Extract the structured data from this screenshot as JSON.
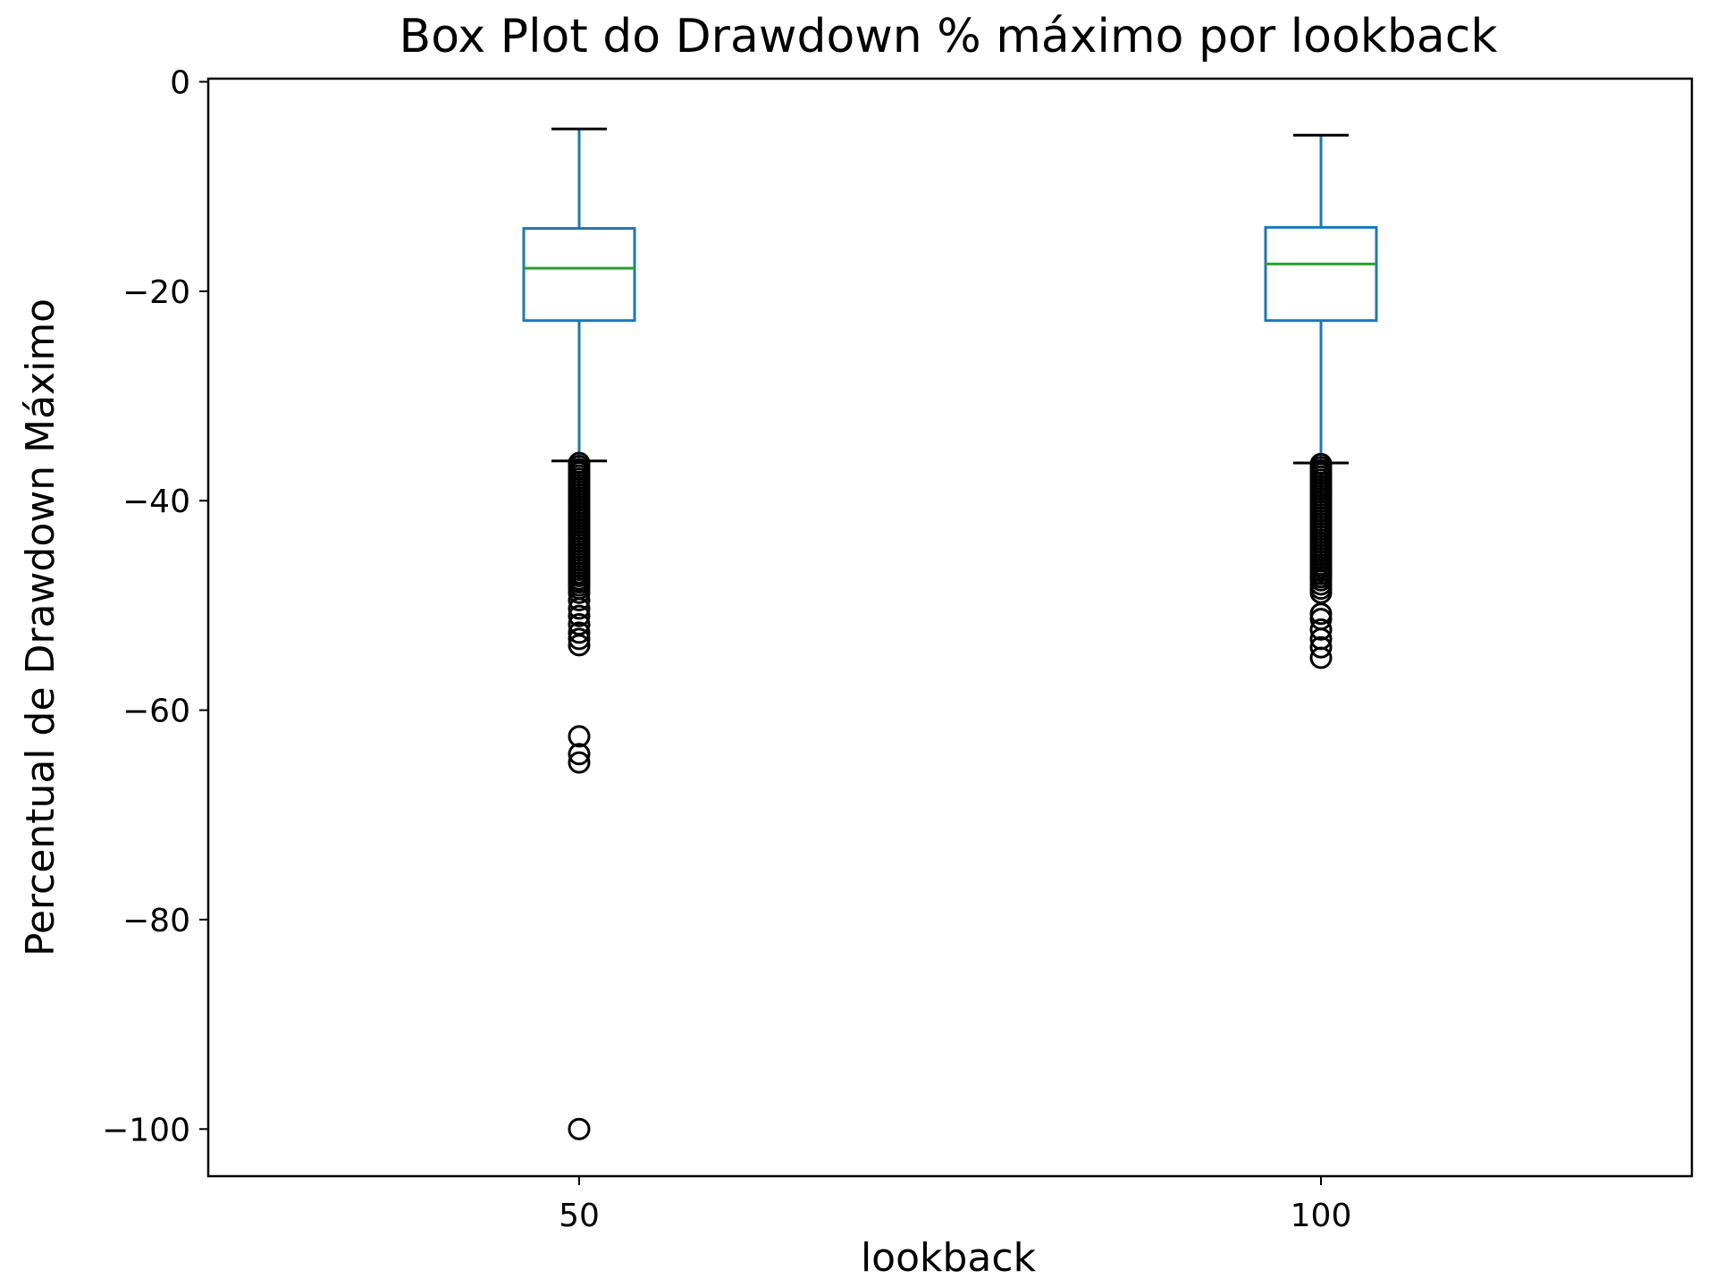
{
  "chart_data": {
    "type": "box",
    "title": "Box Plot do Drawdown % máximo por lookback",
    "xlabel": "lookback",
    "ylabel": "Percentual de Drawdown Máximo",
    "ylim": [
      -104.5,
      0.3
    ],
    "yticks": [
      0,
      -20,
      -40,
      -60,
      -80,
      -100
    ],
    "grid": false,
    "legend": "none",
    "colors": {
      "box": "#1f77b4",
      "median": "#2ca02c",
      "whisker_cap": "#000000",
      "outlier": "#000000",
      "frame": "#000000"
    },
    "categories": [
      "50",
      "100"
    ],
    "series": [
      {
        "category": "50",
        "whisker_high": -4.5,
        "q3": -14.0,
        "median": -17.8,
        "q1": -22.8,
        "whisker_low": -36.2,
        "outliers": [
          -36.4,
          -36.7,
          -37.0,
          -37.3,
          -37.6,
          -37.9,
          -38.2,
          -38.5,
          -38.8,
          -39.1,
          -39.4,
          -39.7,
          -40.0,
          -40.3,
          -40.6,
          -40.9,
          -41.2,
          -41.5,
          -41.8,
          -42.1,
          -42.4,
          -42.7,
          -43.0,
          -43.3,
          -43.6,
          -43.9,
          -44.2,
          -44.5,
          -44.8,
          -45.1,
          -45.4,
          -45.7,
          -46.0,
          -46.3,
          -46.6,
          -46.9,
          -47.2,
          -47.5,
          -47.8,
          -48.1,
          -48.4,
          -48.8,
          -49.5,
          -50.3,
          -51.0,
          -51.8,
          -52.6,
          -53.2,
          -53.8,
          -62.5,
          -64.2,
          -65.0,
          -100.0
        ]
      },
      {
        "category": "100",
        "whisker_high": -5.1,
        "q3": -13.9,
        "median": -17.4,
        "q1": -22.8,
        "whisker_low": -36.4,
        "outliers": [
          -36.5,
          -36.8,
          -37.1,
          -37.4,
          -37.7,
          -38.0,
          -38.3,
          -38.6,
          -38.9,
          -39.2,
          -39.5,
          -39.8,
          -40.1,
          -40.4,
          -40.7,
          -41.0,
          -41.3,
          -41.6,
          -41.9,
          -42.2,
          -42.5,
          -42.8,
          -43.1,
          -43.4,
          -43.7,
          -44.0,
          -44.3,
          -44.6,
          -44.9,
          -45.2,
          -45.5,
          -45.8,
          -46.1,
          -46.4,
          -46.7,
          -47.0,
          -47.3,
          -47.6,
          -48.0,
          -48.4,
          -48.8,
          -50.8,
          -51.3,
          -52.3,
          -53.2,
          -54.0,
          -55.0
        ]
      }
    ]
  }
}
